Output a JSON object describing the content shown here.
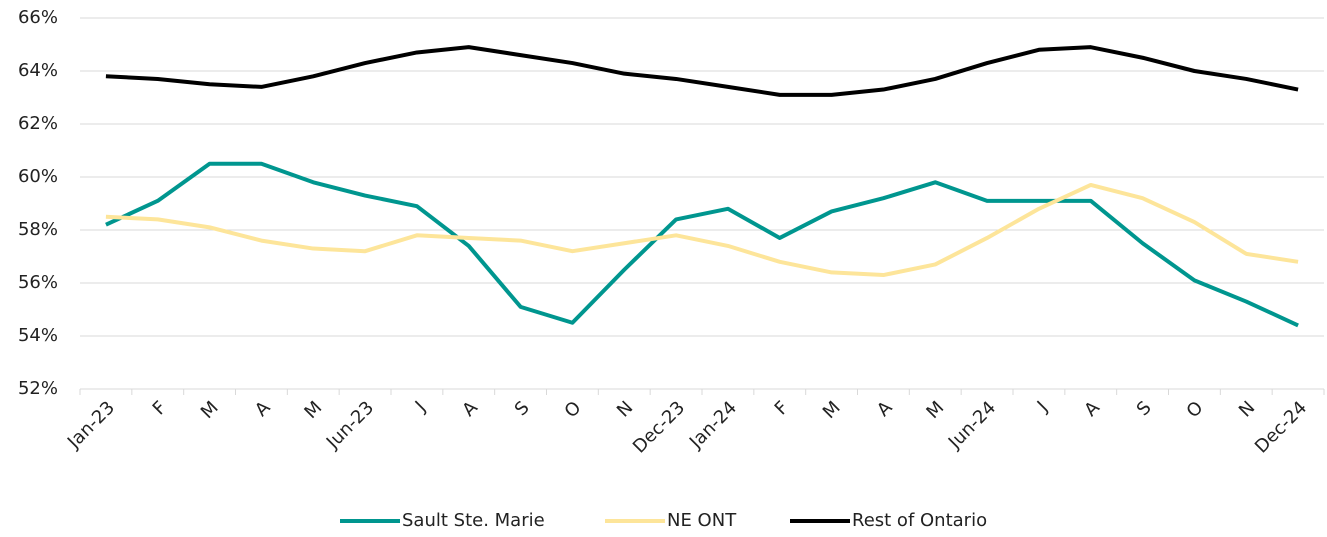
{
  "chart_data": {
    "type": "line",
    "categories": [
      "Jan-23",
      "F",
      "M",
      "A",
      "M",
      "Jun-23",
      "J",
      "A",
      "S",
      "O",
      "N",
      "Dec-23",
      "Jan-24",
      "F",
      "M",
      "A",
      "M",
      "Jun-24",
      "J",
      "A",
      "S",
      "O",
      "N",
      "Dec-24"
    ],
    "series": [
      {
        "name": "Sault Ste. Marie",
        "color": "#00968f",
        "values": [
          58.2,
          59.1,
          60.5,
          60.5,
          59.8,
          59.3,
          58.9,
          57.4,
          55.1,
          54.5,
          56.5,
          58.4,
          58.8,
          57.7,
          58.7,
          59.2,
          59.8,
          59.1,
          59.1,
          59.1,
          57.5,
          56.1,
          55.3,
          54.4
        ]
      },
      {
        "name": "NE ONT",
        "color": "#fde59a",
        "values": [
          58.5,
          58.4,
          58.1,
          57.6,
          57.3,
          57.2,
          57.8,
          57.7,
          57.6,
          57.2,
          57.5,
          57.8,
          57.4,
          56.8,
          56.4,
          56.3,
          56.7,
          57.7,
          58.8,
          59.7,
          59.2,
          58.3,
          57.1,
          56.8
        ]
      },
      {
        "name": "Rest of Ontario",
        "color": "#000000",
        "values": [
          63.8,
          63.7,
          63.5,
          63.4,
          63.8,
          64.3,
          64.7,
          64.9,
          64.6,
          64.3,
          63.9,
          63.7,
          63.4,
          63.1,
          63.1,
          63.3,
          63.7,
          64.3,
          64.8,
          64.9,
          64.5,
          64.0,
          63.7,
          63.3
        ]
      }
    ],
    "ylim": [
      52,
      66
    ],
    "yticks": [
      {
        "value": 52,
        "label": "52%"
      },
      {
        "value": 54,
        "label": "54%"
      },
      {
        "value": 56,
        "label": "56%"
      },
      {
        "value": 58,
        "label": "58%"
      },
      {
        "value": 60,
        "label": "60%"
      },
      {
        "value": 62,
        "label": "62%"
      },
      {
        "value": 64,
        "label": "64%"
      },
      {
        "value": 66,
        "label": "66%"
      }
    ],
    "grid": true,
    "legend": "bottom"
  }
}
